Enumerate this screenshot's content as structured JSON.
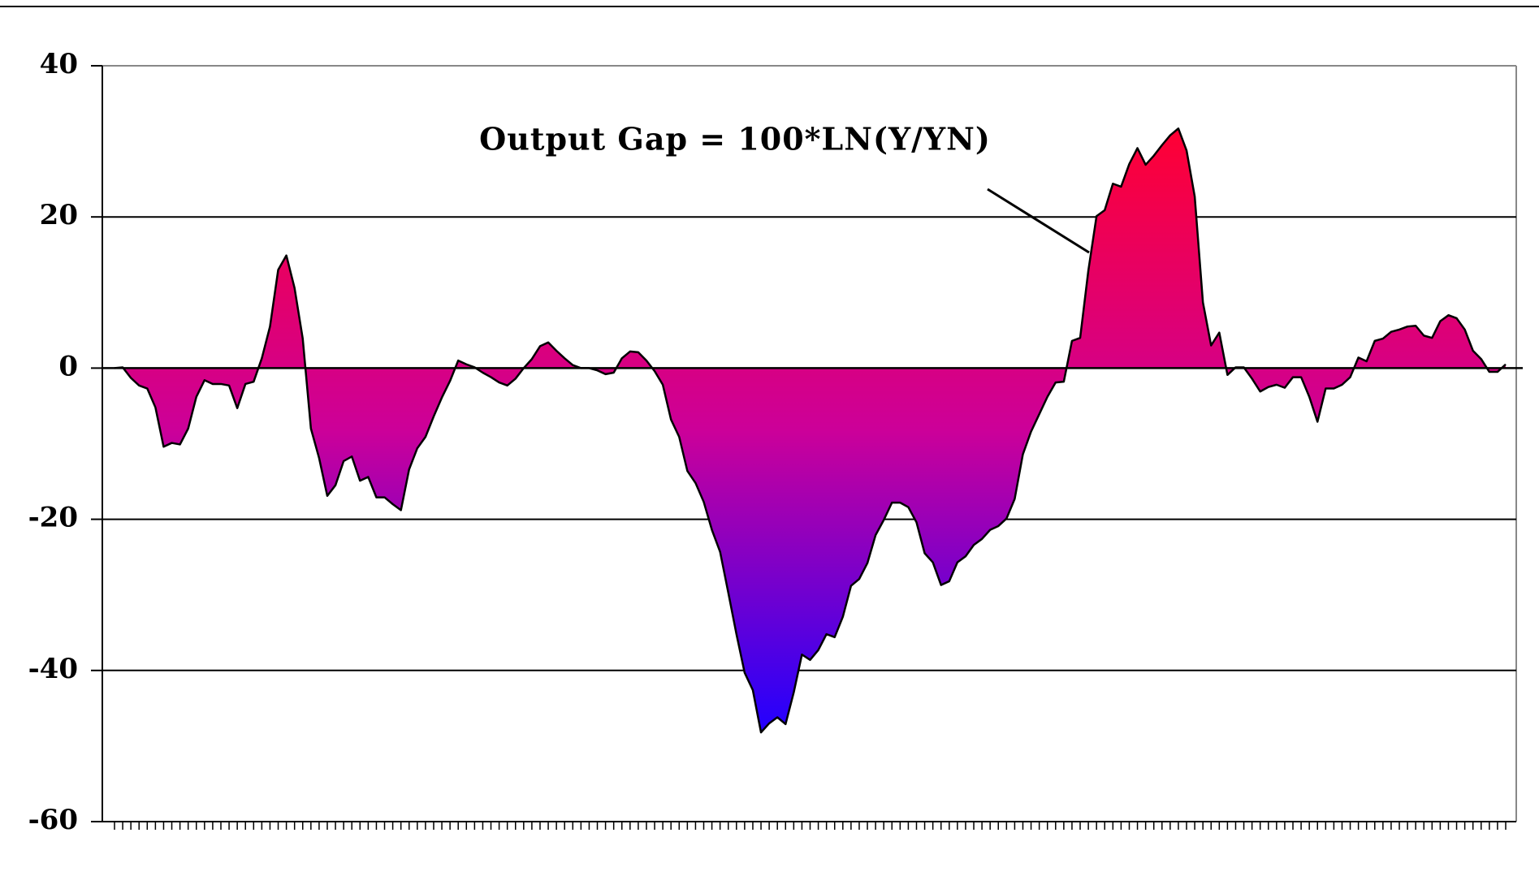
{
  "chart_data": {
    "type": "area",
    "annotation": "Output Gap = 100*LN(Y/YN)",
    "categories": [
      null,
      null,
      null,
      null,
      null,
      null,
      null,
      null,
      null,
      null,
      null,
      null,
      null,
      null,
      null,
      null,
      null,
      null,
      null,
      null,
      null,
      null,
      null,
      null,
      null,
      null,
      null,
      null,
      null,
      null,
      null,
      null,
      null,
      null,
      null,
      null,
      null,
      null,
      null,
      null,
      null,
      null,
      null,
      null,
      null,
      null,
      null,
      null,
      null,
      null,
      null,
      null,
      null,
      null,
      null,
      null,
      null,
      null,
      null,
      null,
      null,
      null,
      null,
      null,
      null,
      null,
      null,
      null,
      null,
      null,
      null,
      null,
      null,
      null,
      null,
      null,
      null,
      null,
      null,
      null,
      null,
      null,
      null,
      null,
      null,
      null,
      null,
      null,
      null,
      null,
      null,
      null,
      null,
      null,
      null,
      null,
      null,
      null,
      null,
      null,
      null,
      null,
      null,
      null,
      null,
      null,
      null,
      null,
      null,
      null,
      null,
      null,
      null,
      null,
      null,
      null,
      null,
      null,
      null,
      null,
      null,
      null,
      null,
      null,
      null,
      null,
      null,
      null,
      null,
      null,
      null,
      null,
      null,
      null,
      null,
      null,
      null,
      null,
      null,
      null,
      null,
      null,
      null,
      null,
      null,
      null,
      null,
      null,
      null,
      null,
      null,
      null,
      null,
      null,
      null,
      null,
      null,
      null,
      null,
      null,
      null,
      null,
      null,
      null,
      null,
      null,
      null,
      null,
      null,
      null,
      null
    ],
    "values": [
      0,
      0.1,
      -1.3,
      -2.3,
      -2.7,
      -5.2,
      -10.4,
      -9.9,
      -10.1,
      -8,
      -3.8,
      -1.6,
      -2.1,
      -2.1,
      -2.3,
      -5.3,
      -2.1,
      -1.8,
      1.3,
      5.5,
      13,
      14.9,
      10.6,
      3.9,
      -8,
      -11.9,
      -16.9,
      -15.5,
      -12.3,
      -11.7,
      -14.9,
      -14.4,
      -17.1,
      -17.1,
      -18,
      -18.8,
      -13.4,
      -10.6,
      -9.1,
      -6.4,
      -3.9,
      -1.7,
      1,
      0.5,
      0.1,
      -0.6,
      -1.2,
      -1.9,
      -2.3,
      -1.4,
      0,
      1.2,
      2.9,
      3.4,
      2.3,
      1.3,
      0.4,
      0,
      0,
      -0.3,
      -0.8,
      -0.6,
      1.3,
      2.2,
      2.1,
      1,
      -0.4,
      -2.2,
      -6.8,
      -9.1,
      -13.6,
      -15.2,
      -17.7,
      -21.4,
      -24.3,
      -29.7,
      -35.2,
      -40.3,
      -42.6,
      -48.2,
      -47,
      -46.2,
      -47.1,
      -42.9,
      -37.9,
      -38.6,
      -37.3,
      -35.2,
      -35.6,
      -32.9,
      -28.8,
      -27.9,
      -25.8,
      -22.1,
      -20.1,
      -17.8,
      -17.8,
      -18.4,
      -20.4,
      -24.5,
      -25.7,
      -28.7,
      -28.2,
      -25.7,
      -24.9,
      -23.4,
      -22.6,
      -21.4,
      -20.9,
      -19.9,
      -17.3,
      -11.4,
      -8.4,
      -6.1,
      -3.8,
      -1.9,
      -1.8,
      3.6,
      4,
      12.9,
      20.1,
      20.9,
      24.4,
      24,
      27,
      29.1,
      26.9,
      28.1,
      29.5,
      30.8,
      31.7,
      28.8,
      22.7,
      8.7,
      3,
      4.7,
      -0.9,
      0.1,
      0.1,
      -1.4,
      -3.1,
      -2.5,
      -2.2,
      -2.6,
      -1.2,
      -1.2,
      -3.8,
      -7.1,
      -2.7,
      -2.7,
      -2.2,
      -1.2,
      1.4,
      0.9,
      3.6,
      3.9,
      4.8,
      5.1,
      5.5,
      5.6,
      4.3,
      4,
      6.2,
      7,
      6.6,
      5.1,
      2.3,
      1.2,
      -0.5,
      -0.5,
      0.5
    ],
    "gradient": [
      "#ff0033",
      "#cc0099",
      "#2200ff"
    ],
    "line_color": "#000000",
    "ylim": [
      -60,
      40
    ],
    "yticks": [
      -60,
      -40,
      -20,
      0,
      20,
      40
    ],
    "grid": true
  }
}
